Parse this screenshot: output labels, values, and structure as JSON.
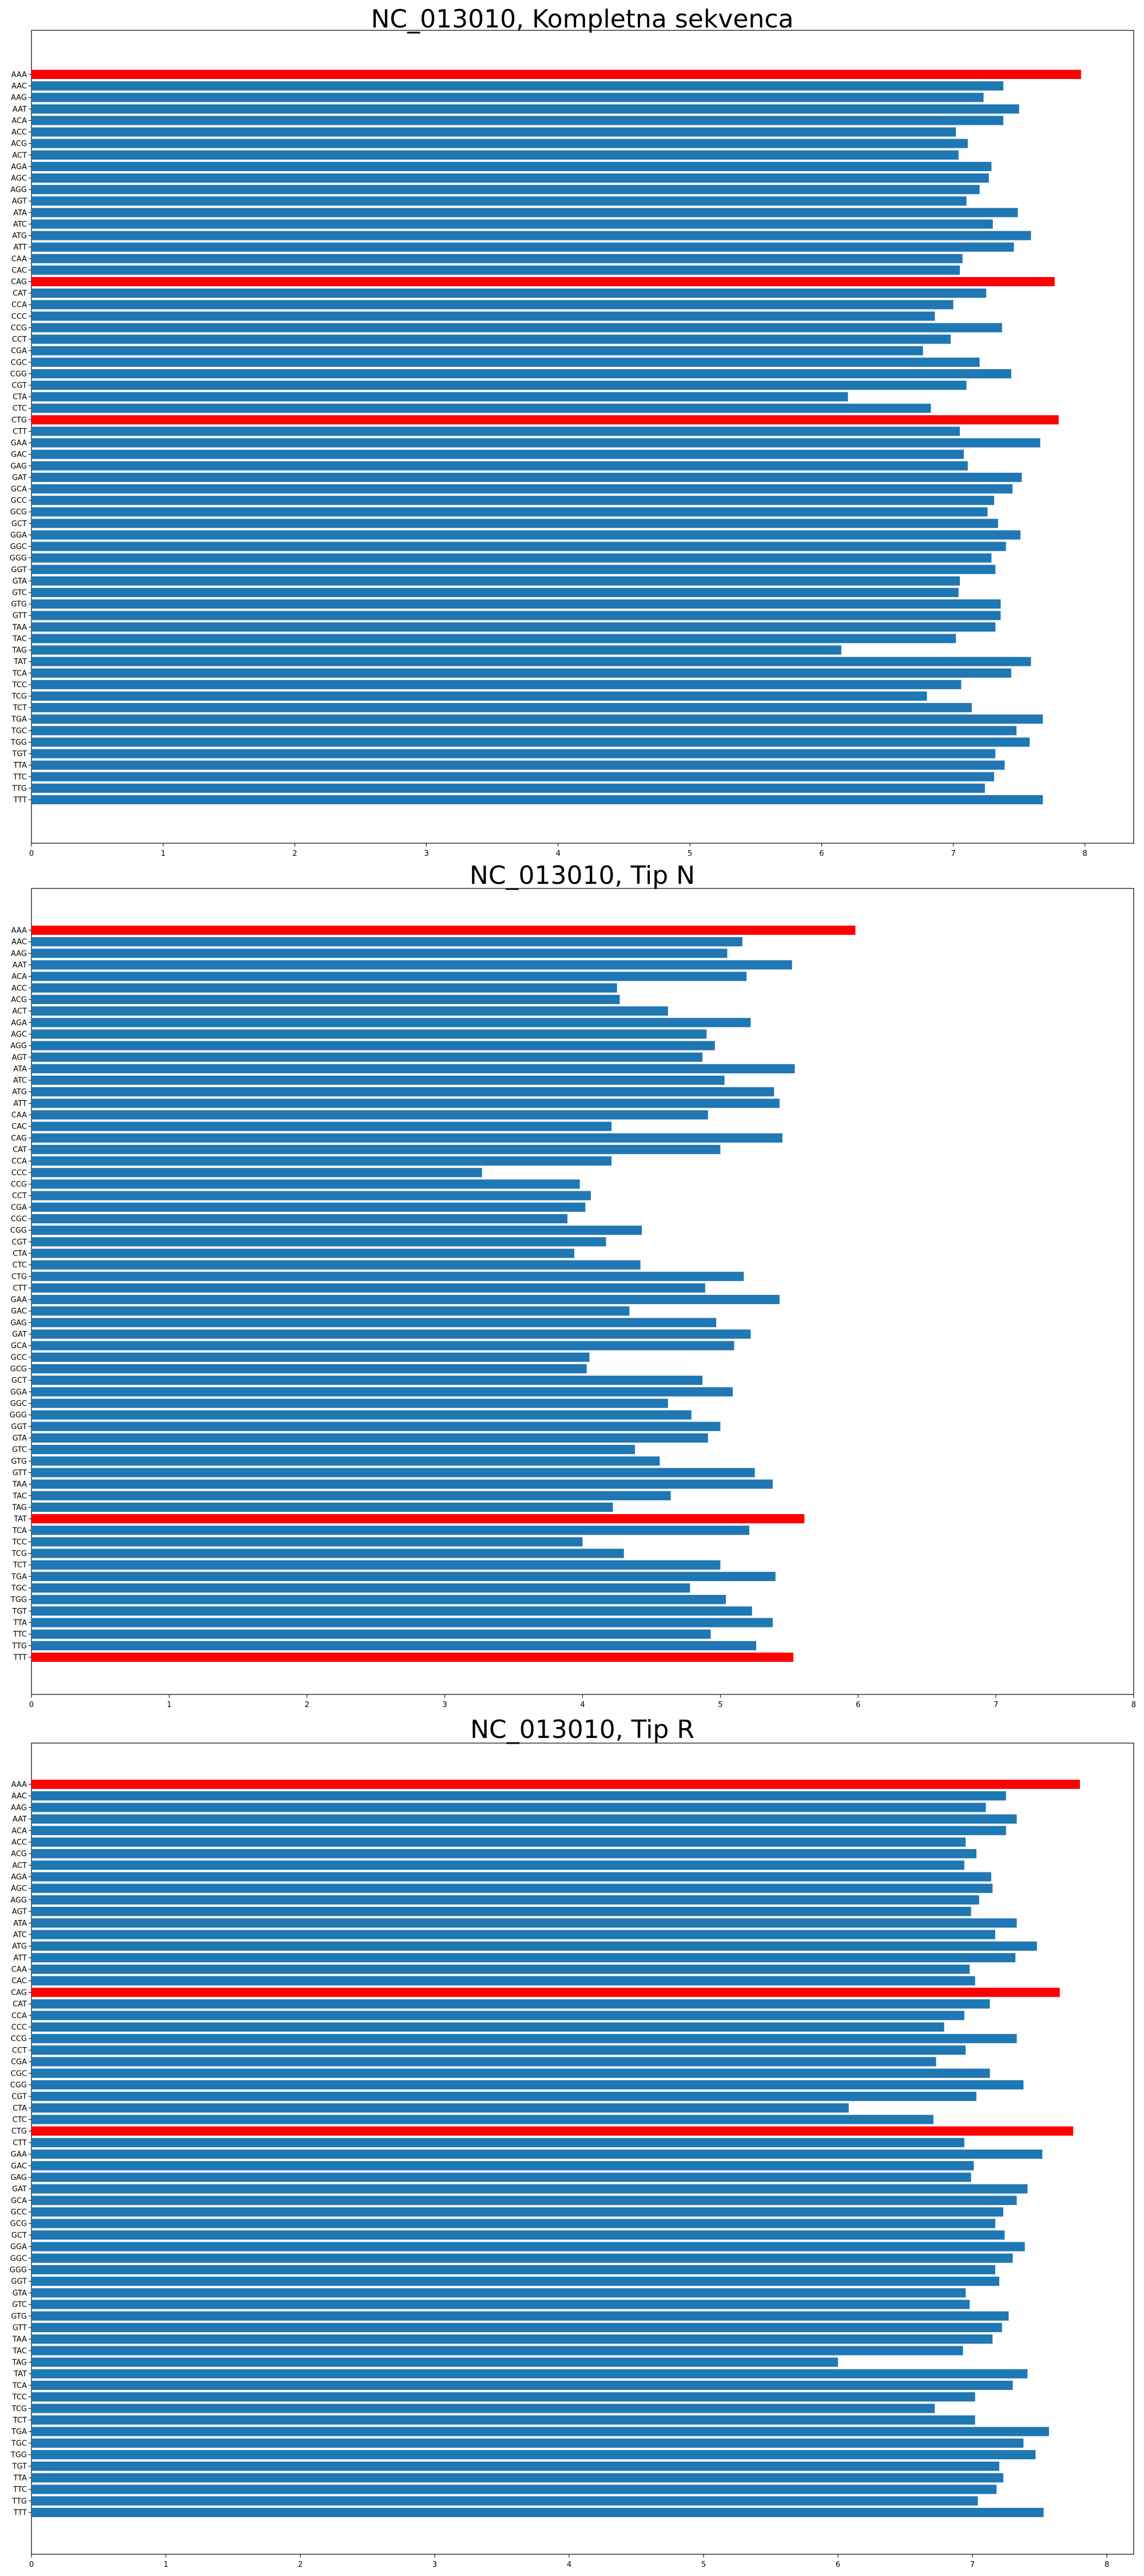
{
  "colors": {
    "normal": "#1f77b4",
    "highlight": "#ff0000"
  },
  "chart_data": [
    {
      "type": "bar",
      "orientation": "horizontal",
      "title": "NC_013010, Kompletna sekvenca",
      "xlim": [
        0,
        8.37
      ],
      "xticks": [
        "0",
        "1",
        "2",
        "3",
        "4",
        "5",
        "6",
        "7",
        "8"
      ],
      "categories": [
        "AAA",
        "AAC",
        "AAG",
        "AAT",
        "ACA",
        "ACC",
        "ACG",
        "ACT",
        "AGA",
        "AGC",
        "AGG",
        "AGT",
        "ATA",
        "ATC",
        "ATG",
        "ATT",
        "CAA",
        "CAC",
        "CAG",
        "CAT",
        "CCA",
        "CCC",
        "CCG",
        "CCT",
        "CGA",
        "CGC",
        "CGG",
        "CGT",
        "CTA",
        "CTC",
        "CTG",
        "CTT",
        "GAA",
        "GAC",
        "GAG",
        "GAT",
        "GCA",
        "GCC",
        "GCG",
        "GCT",
        "GGA",
        "GGC",
        "GGG",
        "GGT",
        "GTA",
        "GTC",
        "GTG",
        "GTT",
        "TAA",
        "TAC",
        "TAG",
        "TAT",
        "TCA",
        "TCC",
        "TCG",
        "TCT",
        "TGA",
        "TGC",
        "TGG",
        "TGT",
        "TTA",
        "TTC",
        "TTG",
        "TTT"
      ],
      "values": [
        7.97,
        7.38,
        7.23,
        7.5,
        7.38,
        7.02,
        7.11,
        7.04,
        7.29,
        7.27,
        7.2,
        7.1,
        7.49,
        7.3,
        7.59,
        7.46,
        7.07,
        7.05,
        7.77,
        7.25,
        7.0,
        6.86,
        7.37,
        6.98,
        6.77,
        7.2,
        7.44,
        7.1,
        6.2,
        6.83,
        7.8,
        7.05,
        7.66,
        7.08,
        7.11,
        7.52,
        7.45,
        7.31,
        7.26,
        7.34,
        7.51,
        7.4,
        7.29,
        7.32,
        7.05,
        7.04,
        7.36,
        7.36,
        7.32,
        7.02,
        6.15,
        7.59,
        7.44,
        7.06,
        6.8,
        7.14,
        7.68,
        7.48,
        7.58,
        7.32,
        7.39,
        7.31,
        7.24,
        7.68
      ],
      "highlight": [
        "AAA",
        "CAG",
        "CTG"
      ]
    },
    {
      "type": "bar",
      "orientation": "horizontal",
      "title": "NC_013010, Tip N",
      "xlim": [
        0,
        8.0
      ],
      "xticks": [
        "0",
        "1",
        "2",
        "3",
        "4",
        "5",
        "6",
        "7",
        "8"
      ],
      "categories": [
        "AAA",
        "AAC",
        "AAG",
        "AAT",
        "ACA",
        "ACC",
        "ACG",
        "ACT",
        "AGA",
        "AGC",
        "AGG",
        "AGT",
        "ATA",
        "ATC",
        "ATG",
        "ATT",
        "CAA",
        "CAC",
        "CAG",
        "CAT",
        "CCA",
        "CCC",
        "CCG",
        "CCT",
        "CGA",
        "CGC",
        "CGG",
        "CGT",
        "CTA",
        "CTC",
        "CTG",
        "CTT",
        "GAA",
        "GAC",
        "GAG",
        "GAT",
        "GCA",
        "GCC",
        "GCG",
        "GCT",
        "GGA",
        "GGC",
        "GGG",
        "GGT",
        "GTA",
        "GTC",
        "GTG",
        "GTT",
        "TAA",
        "TAC",
        "TAG",
        "TAT",
        "TCA",
        "TCC",
        "TCG",
        "TCT",
        "TGA",
        "TGC",
        "TGG",
        "TGT",
        "TTA",
        "TTC",
        "TTG",
        "TTT"
      ],
      "values": [
        5.98,
        5.16,
        5.05,
        5.52,
        5.19,
        4.25,
        4.27,
        4.62,
        5.22,
        4.9,
        4.96,
        4.87,
        5.54,
        5.03,
        5.39,
        5.43,
        4.91,
        4.21,
        5.45,
        5.0,
        4.21,
        3.27,
        3.98,
        4.06,
        4.02,
        3.89,
        4.43,
        4.17,
        3.94,
        4.42,
        5.17,
        4.89,
        5.43,
        4.34,
        4.97,
        5.22,
        5.1,
        4.05,
        4.03,
        4.87,
        5.09,
        4.62,
        4.79,
        5.0,
        4.91,
        4.38,
        4.56,
        5.25,
        5.38,
        4.64,
        4.22,
        5.61,
        5.21,
        4.0,
        4.3,
        5.0,
        5.4,
        4.78,
        5.04,
        5.23,
        5.38,
        4.93,
        5.26,
        5.53
      ],
      "highlight": [
        "AAA",
        "TAT",
        "TTT"
      ]
    },
    {
      "type": "bar",
      "orientation": "horizontal",
      "title": "NC_013010, Tip R",
      "xlim": [
        0,
        8.2
      ],
      "xticks": [
        "0",
        "1",
        "2",
        "3",
        "4",
        "5",
        "6",
        "7",
        "8"
      ],
      "categories": [
        "AAA",
        "AAC",
        "AAG",
        "AAT",
        "ACA",
        "ACC",
        "ACG",
        "ACT",
        "AGA",
        "AGC",
        "AGG",
        "AGT",
        "ATA",
        "ATC",
        "ATG",
        "ATT",
        "CAA",
        "CAC",
        "CAG",
        "CAT",
        "CCA",
        "CCC",
        "CCG",
        "CCT",
        "CGA",
        "CGC",
        "CGG",
        "CGT",
        "CTA",
        "CTC",
        "CTG",
        "CTT",
        "GAA",
        "GAC",
        "GAG",
        "GAT",
        "GCA",
        "GCC",
        "GCG",
        "GCT",
        "GGA",
        "GGC",
        "GGG",
        "GGT",
        "GTA",
        "GTC",
        "GTG",
        "GTT",
        "TAA",
        "TAC",
        "TAG",
        "TAT",
        "TCA",
        "TCC",
        "TCG",
        "TCT",
        "TGA",
        "TGC",
        "TGG",
        "TGT",
        "TTA",
        "TTC",
        "TTG",
        "TTT"
      ],
      "values": [
        7.8,
        7.25,
        7.1,
        7.33,
        7.25,
        6.95,
        7.03,
        6.94,
        7.14,
        7.15,
        7.05,
        6.99,
        7.33,
        7.17,
        7.48,
        7.32,
        6.98,
        7.02,
        7.65,
        7.13,
        6.94,
        6.79,
        7.33,
        6.95,
        6.73,
        7.13,
        7.38,
        7.03,
        6.08,
        6.71,
        7.75,
        6.94,
        7.52,
        7.01,
        6.99,
        7.41,
        7.33,
        7.23,
        7.17,
        7.24,
        7.39,
        7.3,
        7.17,
        7.2,
        6.95,
        6.98,
        7.27,
        7.22,
        7.15,
        6.93,
        6.0,
        7.41,
        7.3,
        7.02,
        6.72,
        7.02,
        7.57,
        7.38,
        7.47,
        7.2,
        7.23,
        7.18,
        7.04,
        7.53
      ],
      "highlight": [
        "AAA",
        "CAG",
        "CTG"
      ]
    }
  ]
}
